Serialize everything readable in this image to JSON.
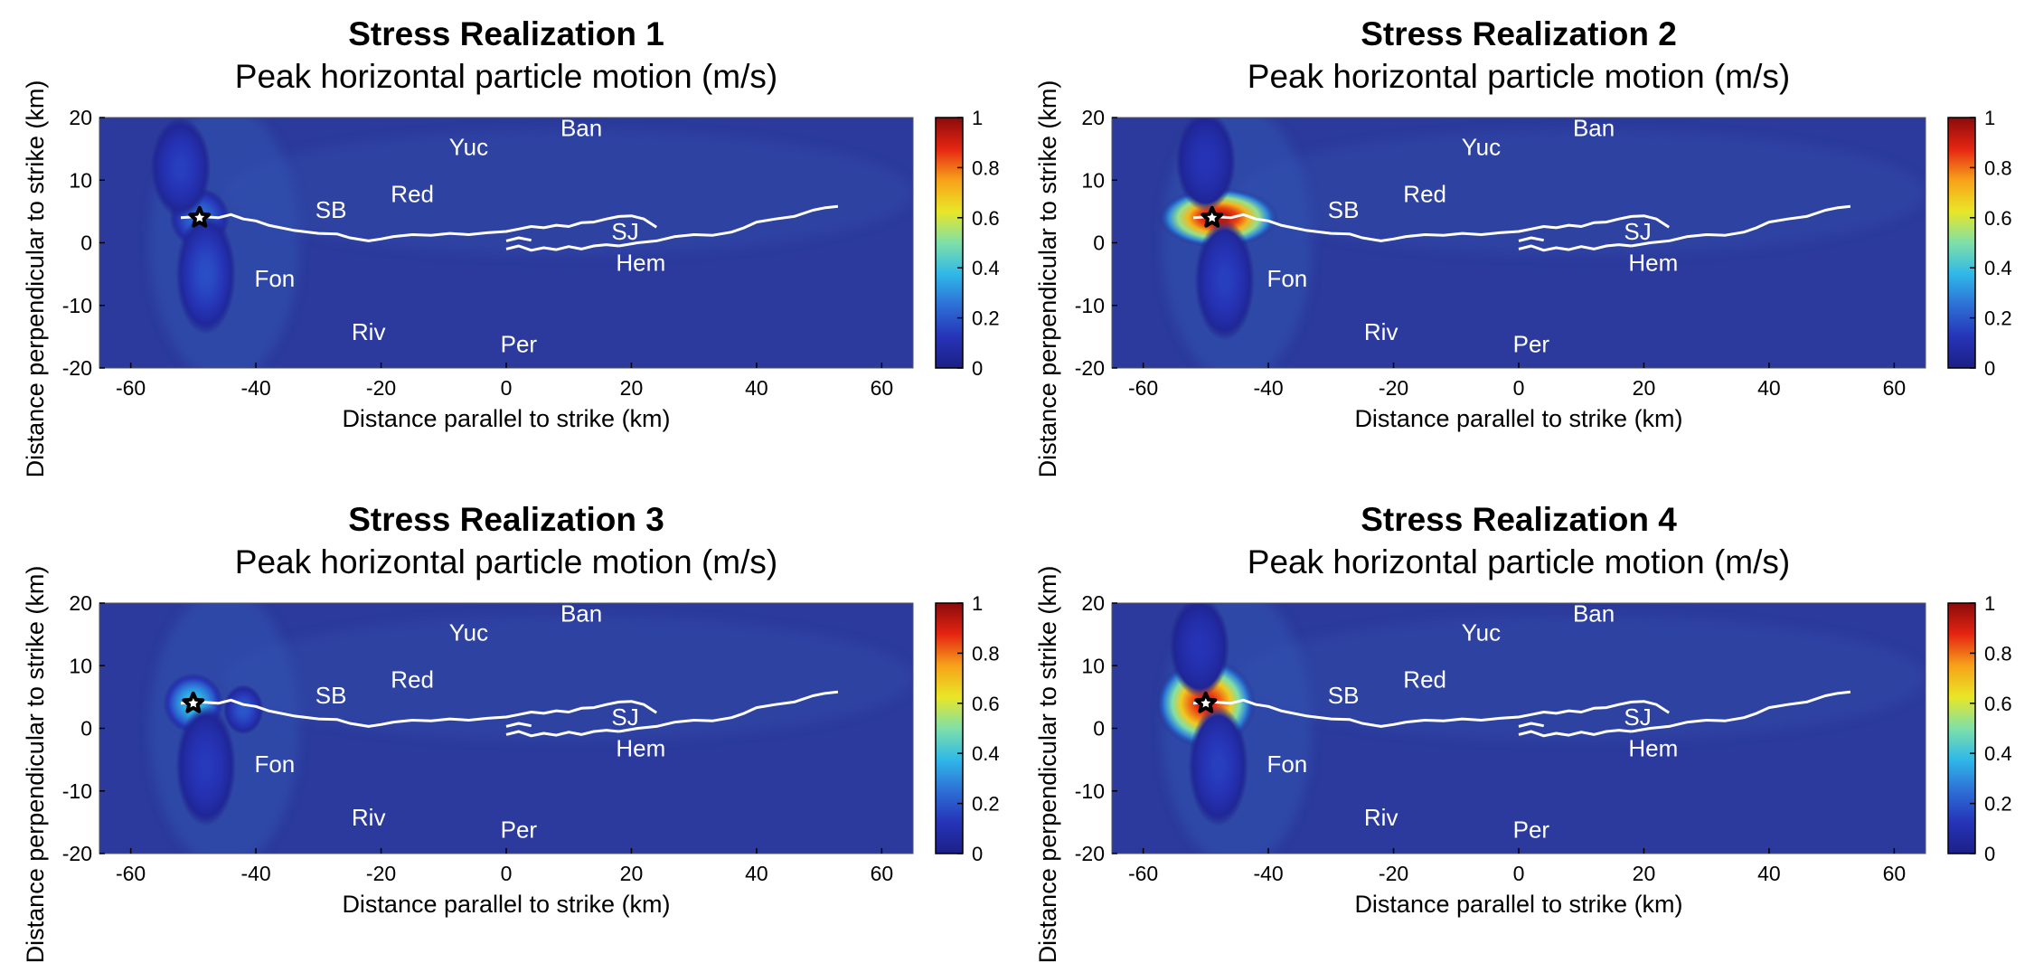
{
  "figure": {
    "colors": {
      "background": "#2b3a9c",
      "fault": "#ffffff",
      "label": "#ffffff",
      "star_fill": "#ffffff",
      "star_stroke": "#000000"
    },
    "colorbar_stops": [
      "#1c1f86",
      "#2634b8",
      "#2d6fd6",
      "#2fb8e8",
      "#7fe0a8",
      "#e9e627",
      "#f7a21a",
      "#e52512",
      "#8a0b0b"
    ]
  },
  "chart_data": [
    {
      "type": "heatmap",
      "title": "Stress Realization 1",
      "subtitle": "Peak horizontal particle motion (m/s)",
      "xlabel": "Distance parallel to strike (km)",
      "ylabel": "Distance perpendicular to strike (km)",
      "xlim": [
        -65,
        65
      ],
      "ylim": [
        -20,
        20
      ],
      "xticks": [
        -60,
        -40,
        -20,
        0,
        20,
        40,
        60
      ],
      "yticks": [
        -20,
        -10,
        0,
        10,
        20
      ],
      "colorbar": {
        "range": [
          0,
          1
        ],
        "ticks": [
          0,
          0.2,
          0.4,
          0.6,
          0.8,
          1
        ]
      },
      "hypocenter": [
        -49,
        4
      ],
      "peak_value": 0.25,
      "hotspots": [
        {
          "x": -49,
          "y": 4,
          "value": 0.25,
          "rx": 3,
          "ry": 3
        },
        {
          "x": -48,
          "y": -5,
          "value": 0.18,
          "rx": 3,
          "ry": 6
        },
        {
          "x": -52,
          "y": 12,
          "value": 0.15,
          "rx": 3,
          "ry": 5
        }
      ],
      "places": [
        {
          "name": "Ban",
          "x": 12,
          "y": 18
        },
        {
          "name": "Yuc",
          "x": -6,
          "y": 15
        },
        {
          "name": "Red",
          "x": -15,
          "y": 7.5
        },
        {
          "name": "SB",
          "x": -28,
          "y": 5
        },
        {
          "name": "Fon",
          "x": -37,
          "y": -6
        },
        {
          "name": "SJ",
          "x": 19,
          "y": 1.5
        },
        {
          "name": "Hem",
          "x": 21.5,
          "y": -3.5
        },
        {
          "name": "Riv",
          "x": -22,
          "y": -14.5
        },
        {
          "name": "Per",
          "x": 2,
          "y": -16.5
        }
      ]
    },
    {
      "type": "heatmap",
      "title": "Stress Realization 2",
      "subtitle": "Peak horizontal particle motion (m/s)",
      "xlabel": "Distance parallel to strike (km)",
      "ylabel": "Distance perpendicular to strike (km)",
      "xlim": [
        -65,
        65
      ],
      "ylim": [
        -20,
        20
      ],
      "xticks": [
        -60,
        -40,
        -20,
        0,
        20,
        40,
        60
      ],
      "yticks": [
        -20,
        -10,
        0,
        10,
        20
      ],
      "colorbar": {
        "range": [
          0,
          1
        ],
        "ticks": [
          0,
          0.2,
          0.4,
          0.6,
          0.8,
          1
        ]
      },
      "hypocenter": [
        -49,
        4
      ],
      "peak_value": 0.95,
      "hotspots": [
        {
          "x": -48,
          "y": 4,
          "value": 0.95,
          "rx": 6,
          "ry": 3
        },
        {
          "x": -47,
          "y": -6,
          "value": 0.15,
          "rx": 3,
          "ry": 6
        },
        {
          "x": -50,
          "y": 13,
          "value": 0.12,
          "rx": 3,
          "ry": 5
        }
      ],
      "places": [
        {
          "name": "Ban",
          "x": 12,
          "y": 18
        },
        {
          "name": "Yuc",
          "x": -6,
          "y": 15
        },
        {
          "name": "Red",
          "x": -15,
          "y": 7.5
        },
        {
          "name": "SB",
          "x": -28,
          "y": 5
        },
        {
          "name": "Fon",
          "x": -37,
          "y": -6
        },
        {
          "name": "SJ",
          "x": 19,
          "y": 1.5
        },
        {
          "name": "Hem",
          "x": 21.5,
          "y": -3.5
        },
        {
          "name": "Riv",
          "x": -22,
          "y": -14.5
        },
        {
          "name": "Per",
          "x": 2,
          "y": -16.5
        }
      ]
    },
    {
      "type": "heatmap",
      "title": "Stress Realization 3",
      "subtitle": "Peak horizontal particle motion (m/s)",
      "xlabel": "Distance parallel to strike (km)",
      "ylabel": "Distance perpendicular to strike (km)",
      "xlim": [
        -65,
        65
      ],
      "ylim": [
        -20,
        20
      ],
      "xticks": [
        -60,
        -40,
        -20,
        0,
        20,
        40,
        60
      ],
      "yticks": [
        -20,
        -10,
        0,
        10,
        20
      ],
      "colorbar": {
        "range": [
          0,
          1
        ],
        "ticks": [
          0,
          0.2,
          0.4,
          0.6,
          0.8,
          1
        ]
      },
      "hypocenter": [
        -50,
        4
      ],
      "peak_value": 0.4,
      "hotspots": [
        {
          "x": -50,
          "y": 4,
          "value": 0.4,
          "rx": 3,
          "ry": 3
        },
        {
          "x": -42,
          "y": 3,
          "value": 0.2,
          "rx": 2,
          "ry": 2.5
        },
        {
          "x": -48,
          "y": -6,
          "value": 0.14,
          "rx": 3,
          "ry": 6
        }
      ],
      "places": [
        {
          "name": "Ban",
          "x": 12,
          "y": 18
        },
        {
          "name": "Yuc",
          "x": -6,
          "y": 15
        },
        {
          "name": "Red",
          "x": -15,
          "y": 7.5
        },
        {
          "name": "SB",
          "x": -28,
          "y": 5
        },
        {
          "name": "Fon",
          "x": -37,
          "y": -6
        },
        {
          "name": "SJ",
          "x": 19,
          "y": 1.5
        },
        {
          "name": "Hem",
          "x": 21.5,
          "y": -3.5
        },
        {
          "name": "Riv",
          "x": -22,
          "y": -14.5
        },
        {
          "name": "Per",
          "x": 2,
          "y": -16.5
        }
      ]
    },
    {
      "type": "heatmap",
      "title": "Stress Realization 4",
      "subtitle": "Peak horizontal particle motion (m/s)",
      "xlabel": "Distance parallel to strike (km)",
      "ylabel": "Distance perpendicular to strike (km)",
      "xlim": [
        -65,
        65
      ],
      "ylim": [
        -20,
        20
      ],
      "xticks": [
        -60,
        -40,
        -20,
        0,
        20,
        40,
        60
      ],
      "yticks": [
        -20,
        -10,
        0,
        10,
        20
      ],
      "colorbar": {
        "range": [
          0,
          1
        ],
        "ticks": [
          0,
          0.2,
          0.4,
          0.6,
          0.8,
          1
        ]
      },
      "hypocenter": [
        -50,
        4
      ],
      "peak_value": 0.9,
      "hotspots": [
        {
          "x": -50,
          "y": 4,
          "value": 0.9,
          "rx": 5,
          "ry": 4.5
        },
        {
          "x": -48,
          "y": -6,
          "value": 0.15,
          "rx": 3,
          "ry": 6
        },
        {
          "x": -51,
          "y": 13,
          "value": 0.12,
          "rx": 3,
          "ry": 5
        }
      ],
      "places": [
        {
          "name": "Ban",
          "x": 12,
          "y": 18
        },
        {
          "name": "Yuc",
          "x": -6,
          "y": 15
        },
        {
          "name": "Red",
          "x": -15,
          "y": 7.5
        },
        {
          "name": "SB",
          "x": -28,
          "y": 5
        },
        {
          "name": "Fon",
          "x": -37,
          "y": -6
        },
        {
          "name": "SJ",
          "x": 19,
          "y": 1.5
        },
        {
          "name": "Hem",
          "x": 21.5,
          "y": -3.5
        },
        {
          "name": "Riv",
          "x": -22,
          "y": -14.5
        },
        {
          "name": "Per",
          "x": 2,
          "y": -16.5
        }
      ]
    }
  ]
}
